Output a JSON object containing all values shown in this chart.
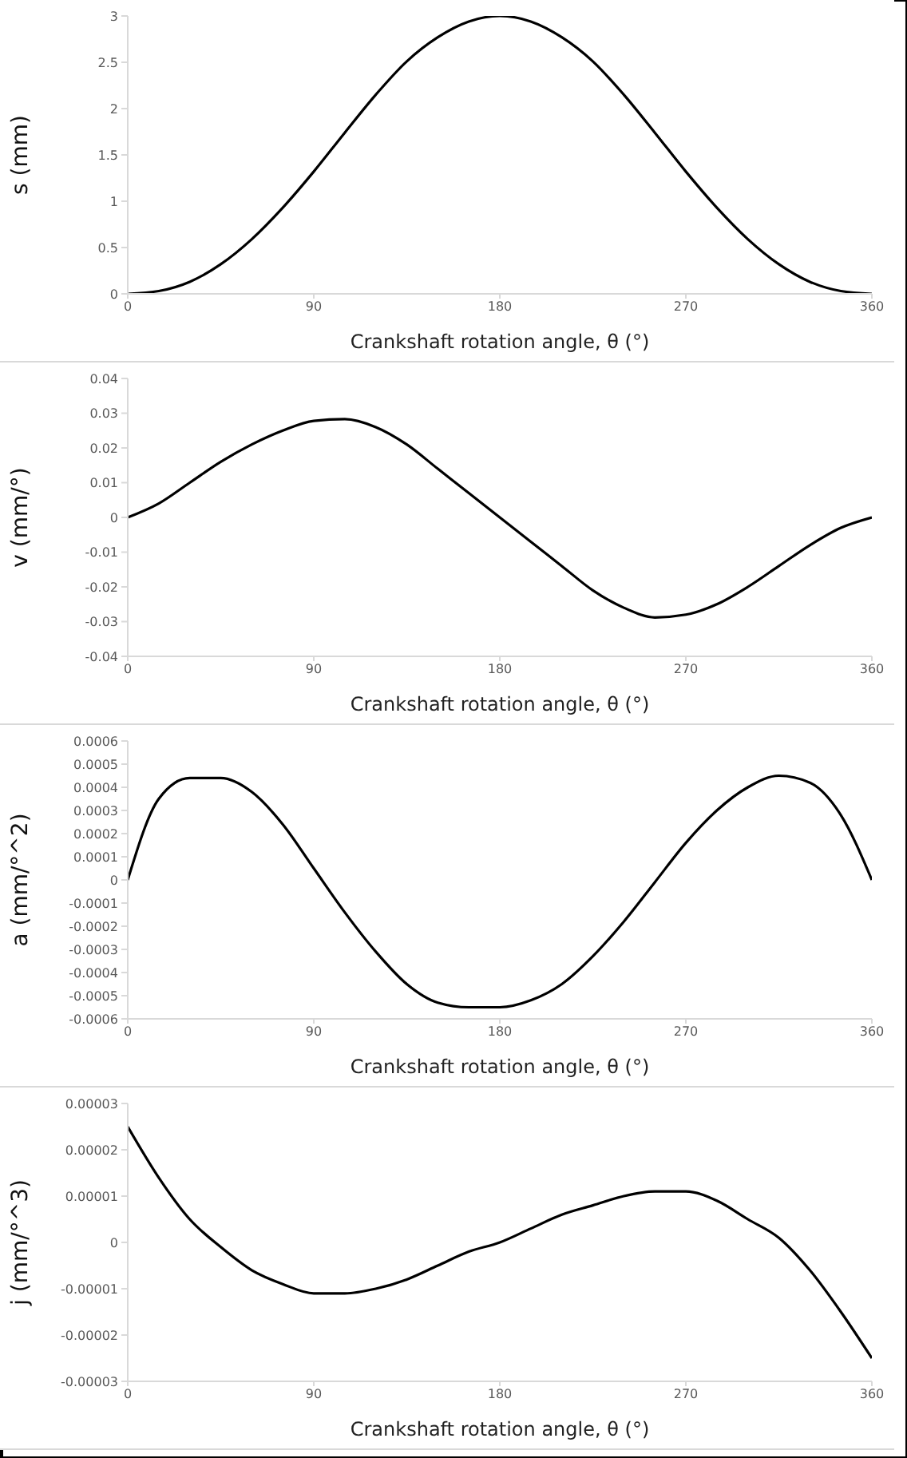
{
  "chart_data": [
    {
      "type": "line",
      "x": [
        0,
        15,
        30,
        45,
        60,
        75,
        90,
        105,
        120,
        135,
        150,
        165,
        180,
        195,
        210,
        225,
        240,
        255,
        270,
        285,
        300,
        315,
        330,
        345,
        360
      ],
      "series": [
        {
          "color": "#000000",
          "values": [
            0,
            0.03,
            0.13,
            0.32,
            0.59,
            0.93,
            1.32,
            1.74,
            2.15,
            2.51,
            2.77,
            2.94,
            3.0,
            2.94,
            2.77,
            2.51,
            2.15,
            1.74,
            1.32,
            0.93,
            0.59,
            0.32,
            0.13,
            0.03,
            0
          ]
        }
      ],
      "xlim": [
        0,
        360
      ],
      "xticks": [
        0,
        90,
        180,
        270,
        360
      ],
      "ylim": [
        0,
        3
      ],
      "yticks": [
        0,
        0.5,
        1,
        1.5,
        2,
        2.5,
        3
      ],
      "xlabel": "Crankshaft rotation angle, θ (°)",
      "ylabel": "s (mm)",
      "marker": "none",
      "line_style": "solid"
    },
    {
      "type": "line",
      "x": [
        0,
        15,
        30,
        45,
        60,
        75,
        90,
        105,
        120,
        135,
        150,
        165,
        180,
        195,
        210,
        225,
        240,
        255,
        270,
        285,
        300,
        315,
        330,
        345,
        360
      ],
      "series": [
        {
          "color": "#000000",
          "values": [
            0,
            0.004,
            0.01,
            0.016,
            0.021,
            0.025,
            0.0278,
            0.0283,
            0.026,
            0.021,
            0.014,
            0.007,
            0,
            -0.007,
            -0.014,
            -0.021,
            -0.026,
            -0.0288,
            -0.028,
            -0.025,
            -0.02,
            -0.014,
            -0.008,
            -0.003,
            0
          ]
        }
      ],
      "xlim": [
        0,
        360
      ],
      "xticks": [
        0,
        90,
        180,
        270,
        360
      ],
      "ylim": [
        -0.04,
        0.04
      ],
      "yticks": [
        -0.04,
        -0.03,
        -0.02,
        -0.01,
        0,
        0.01,
        0.02,
        0.03,
        0.04
      ],
      "xlabel": "Crankshaft rotation angle, θ (°)",
      "ylabel": "v (mm/°)",
      "marker": "none",
      "line_style": "solid"
    },
    {
      "type": "line",
      "x": [
        0,
        15,
        30,
        45,
        60,
        75,
        90,
        105,
        120,
        135,
        150,
        165,
        180,
        195,
        210,
        225,
        240,
        255,
        270,
        285,
        300,
        315,
        330,
        345,
        360
      ],
      "series": [
        {
          "color": "#000000",
          "values": [
            0,
            0.00035,
            0.00044,
            0.00044,
            0.00038,
            0.00024,
            5e-05,
            -0.00014,
            -0.00031,
            -0.00045,
            -0.00053,
            -0.00055,
            -0.00055,
            -0.00052,
            -0.00045,
            -0.00033,
            -0.00018,
            -1e-05,
            0.00016,
            0.0003,
            0.0004,
            0.00045,
            0.00042,
            0.00028,
            0
          ]
        }
      ],
      "xlim": [
        0,
        360
      ],
      "xticks": [
        0,
        90,
        180,
        270,
        360
      ],
      "ylim": [
        -0.0006,
        0.0006
      ],
      "yticks": [
        -0.0006,
        -0.0005,
        -0.0004,
        -0.0003,
        -0.0002,
        -0.0001,
        0,
        0.0001,
        0.0002,
        0.0003,
        0.0004,
        0.0005,
        0.0006
      ],
      "xlabel": "Crankshaft rotation angle, θ (°)",
      "ylabel": "a (mm/°^2)",
      "marker": "none",
      "line_style": "solid"
    },
    {
      "type": "line",
      "x": [
        0,
        15,
        30,
        45,
        60,
        75,
        90,
        105,
        120,
        135,
        150,
        165,
        180,
        195,
        210,
        225,
        240,
        255,
        270,
        285,
        300,
        315,
        330,
        345,
        360
      ],
      "series": [
        {
          "color": "#000000",
          "values": [
            2.5e-05,
            1.4e-05,
            5e-06,
            -1e-06,
            -6e-06,
            -9e-06,
            -1.1e-05,
            -1.1e-05,
            -1e-05,
            -8e-06,
            -5e-06,
            -2e-06,
            0,
            3e-06,
            6e-06,
            8e-06,
            1e-05,
            1.1e-05,
            1.1e-05,
            9e-06,
            5e-06,
            1e-06,
            -6e-06,
            -1.5e-05,
            -2.5e-05
          ]
        }
      ],
      "xlim": [
        0,
        360
      ],
      "xticks": [
        0,
        90,
        180,
        270,
        360
      ],
      "ylim": [
        -3e-05,
        3e-05
      ],
      "yticks": [
        {
          "value": -3e-05,
          "label": "-0.00003"
        },
        {
          "value": -2e-05,
          "label": "-0.00002"
        },
        {
          "value": -1e-05,
          "label": "-0.00001"
        },
        0,
        {
          "value": 1e-05,
          "label": "0.00001"
        },
        {
          "value": 2e-05,
          "label": "0.00002"
        },
        {
          "value": 3e-05,
          "label": "0.00003"
        }
      ],
      "xlabel": "Crankshaft rotation angle, θ (°)",
      "ylabel": "j (mm/°^3)",
      "marker": "none",
      "line_style": "solid"
    }
  ]
}
